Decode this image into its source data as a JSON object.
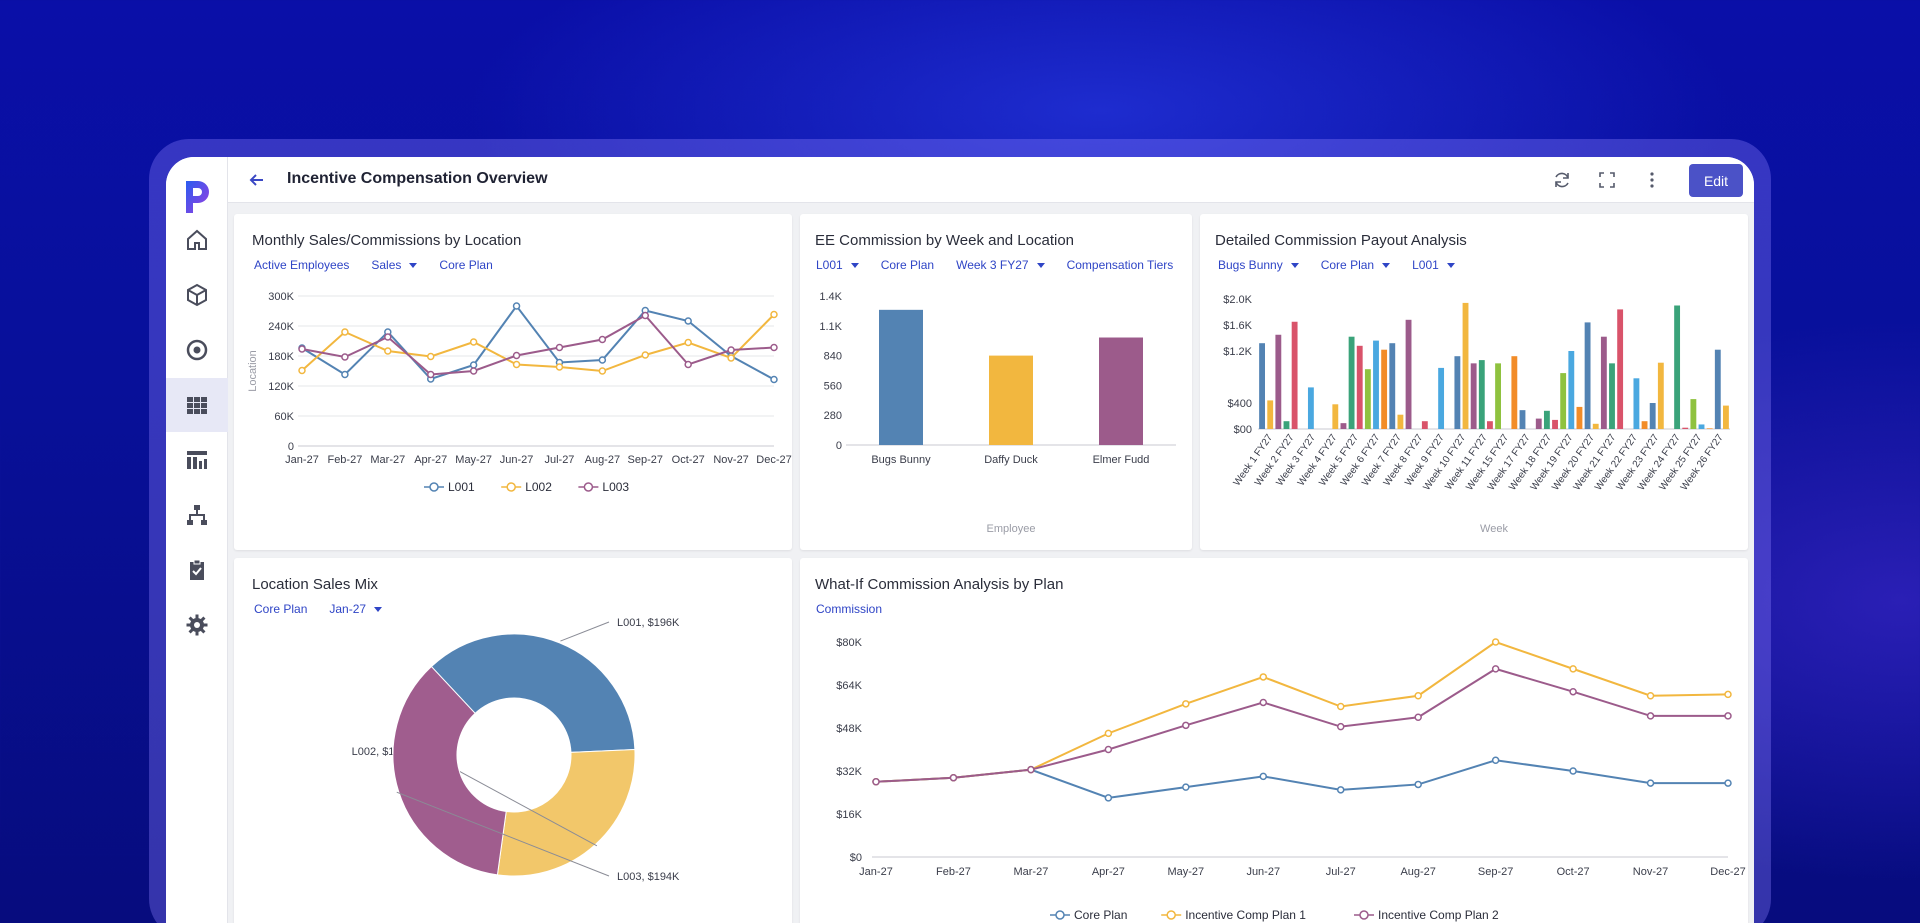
{
  "page_title": "Incentive Compensation Overview",
  "toolbar": {
    "edit_label": "Edit"
  },
  "icons": {
    "back": "arrow-left-icon",
    "refresh": "refresh-icon",
    "fullscreen": "fullscreen-icon",
    "more": "more-vertical-icon",
    "nav": [
      "home-icon",
      "cube-icon",
      "target-icon",
      "grid-icon",
      "dashboard-icon",
      "hierarchy-icon",
      "clipboard-icon",
      "settings-icon"
    ]
  },
  "colors": {
    "accent": "#4b52c7",
    "filter": "#2f45c6",
    "blue": "#5383b3",
    "yellow": "#f2b73f",
    "purple": "#9c5b8b"
  },
  "cards": {
    "monthly": {
      "title": "Monthly Sales/Commissions by Location",
      "filters": [
        {
          "label": "Active Employees",
          "dropdown": false
        },
        {
          "label": "Sales",
          "dropdown": true
        },
        {
          "label": "Core Plan",
          "dropdown": false
        }
      ]
    },
    "ee": {
      "title": "EE Commission by Week and Location",
      "filters": [
        {
          "label": "L001",
          "dropdown": true
        },
        {
          "label": "Core Plan",
          "dropdown": false
        },
        {
          "label": "Week 3 FY27",
          "dropdown": true
        },
        {
          "label": "Compensation Tiers",
          "dropdown": false
        }
      ]
    },
    "detailed": {
      "title": "Detailed Commission Payout Analysis",
      "filters": [
        {
          "label": "Bugs Bunny",
          "dropdown": true
        },
        {
          "label": "Core Plan",
          "dropdown": true
        },
        {
          "label": "L001",
          "dropdown": true
        }
      ]
    },
    "mix": {
      "title": "Location Sales Mix",
      "filters": [
        {
          "label": "Core Plan",
          "dropdown": false
        },
        {
          "label": "Jan-27",
          "dropdown": true
        }
      ]
    },
    "whatif": {
      "title": "What-If Commission Analysis by Plan",
      "filters": [
        {
          "label": "Commission",
          "dropdown": false
        }
      ]
    }
  },
  "chart_data": [
    {
      "id": "monthly",
      "type": "line",
      "ylabel": "Location",
      "xlabel": "",
      "ylim": [
        0,
        300000
      ],
      "yticks": [
        "0",
        "60K",
        "120K",
        "180K",
        "240K",
        "300K"
      ],
      "yticks_values": [
        0,
        60000,
        120000,
        180000,
        240000,
        300000
      ],
      "categories": [
        "Jan-27",
        "Feb-27",
        "Mar-27",
        "Apr-27",
        "May-27",
        "Jun-27",
        "Jul-27",
        "Aug-27",
        "Sep-27",
        "Oct-27",
        "Nov-27",
        "Dec-27"
      ],
      "legend_position": "bottom",
      "grid": true,
      "series": [
        {
          "name": "L001",
          "color": "#5383b3",
          "values": [
            196000,
            143000,
            228000,
            134000,
            162000,
            280000,
            167000,
            172000,
            271000,
            250000,
            180000,
            133000
          ]
        },
        {
          "name": "L002",
          "color": "#f2b73f",
          "values": [
            151000,
            228000,
            190000,
            179000,
            208000,
            163000,
            158000,
            150000,
            182000,
            207000,
            176000,
            263000
          ]
        },
        {
          "name": "L003",
          "color": "#9c5b8b",
          "values": [
            194000,
            178000,
            218000,
            143000,
            150000,
            181000,
            197000,
            213000,
            261000,
            163000,
            192000,
            197000
          ]
        }
      ]
    },
    {
      "id": "ee",
      "type": "bar",
      "xlabel": "Employee",
      "ylabel": "",
      "ylim": [
        0,
        1400
      ],
      "yticks": [
        "0",
        "280",
        "560",
        "840",
        "1.1K",
        "1.4K"
      ],
      "yticks_values": [
        0,
        280,
        560,
        840,
        1120,
        1400
      ],
      "categories": [
        "Bugs Bunny",
        "Daffy Duck",
        "Elmer Fudd"
      ],
      "values": [
        1270,
        840,
        1010
      ],
      "colors": [
        "#5383b3",
        "#f2b73f",
        "#9c5b8b"
      ],
      "grid": false
    },
    {
      "id": "detailed",
      "type": "bar",
      "xlabel": "Week",
      "ylabel": "",
      "ylim": [
        0,
        2000
      ],
      "yticks": [
        "$00",
        "$400",
        "$1.2K",
        "$1.6K",
        "$2.0K"
      ],
      "yticks_values": [
        0,
        400,
        1200,
        1600,
        2000
      ],
      "categories": [
        "Week 1 FY27",
        "Week 2 FY27",
        "Week 3 FY27",
        "Week 4 FY27",
        "Week 5 FY27",
        "Week 6 FY27",
        "Week 7 FY27",
        "Week 8 FY27",
        "Week 9 FY27",
        "Week 10 FY27",
        "Week 11 FY27",
        "Week 15 FY27",
        "Week 17 FY27",
        "Week 18 FY27",
        "Week 19 FY27",
        "Week 20 FY27",
        "Week 21 FY27",
        "Week 22 FY27",
        "Week 23 FY27",
        "Week 24 FY27",
        "Week 25 FY27",
        "Week 26 FY27"
      ],
      "bar_colors": [
        "#5383b3",
        "#f2b73f",
        "#9c5b8b",
        "#3aa37a",
        "#d9536a",
        "#8fc23f",
        "#4aa8e0",
        "#f28c28"
      ],
      "bars": [
        1320,
        440,
        1450,
        120,
        1650,
        0,
        640,
        0,
        0,
        380,
        90,
        1420,
        1280,
        920,
        1360,
        1220,
        1320,
        220,
        1680,
        0,
        120,
        0,
        940,
        0,
        1120,
        1940,
        1010,
        1060,
        120,
        1010,
        0,
        1120,
        290,
        0,
        160,
        280,
        140,
        860,
        1200,
        340,
        1640,
        80,
        1420,
        1010,
        1840,
        0,
        780,
        120,
        400,
        1020,
        0,
        1900,
        20,
        460,
        70,
        10,
        1220,
        360
      ],
      "grid": false
    },
    {
      "id": "mix",
      "type": "pie",
      "donut": true,
      "slices": [
        {
          "label": "L001, $196K",
          "name": "L001",
          "value": 196,
          "color": "#5383b3"
        },
        {
          "label": "L002, $151K",
          "name": "L002",
          "value": 151,
          "color": "#f2c76a"
        },
        {
          "label": "L003, $194K",
          "name": "L003",
          "value": 194,
          "color": "#a05d8e"
        }
      ]
    },
    {
      "id": "whatif",
      "type": "line",
      "xlabel": "",
      "ylabel": "",
      "ylim": [
        0,
        80000
      ],
      "yticks": [
        "$0",
        "$16K",
        "$32K",
        "$48K",
        "$64K",
        "$80K"
      ],
      "yticks_values": [
        0,
        16000,
        32000,
        48000,
        64000,
        80000
      ],
      "categories": [
        "Jan-27",
        "Feb-27",
        "Mar-27",
        "Apr-27",
        "May-27",
        "Jun-27",
        "Jul-27",
        "Aug-27",
        "Sep-27",
        "Oct-27",
        "Nov-27",
        "Dec-27"
      ],
      "legend_position": "bottom",
      "grid": false,
      "series": [
        {
          "name": "Core Plan",
          "color": "#5383b3",
          "values": [
            28000,
            29500,
            32500,
            22000,
            26000,
            30000,
            25000,
            27000,
            36000,
            32000,
            27500,
            27500
          ]
        },
        {
          "name": "Incentive Comp Plan 1",
          "color": "#f2b73f",
          "values": [
            28000,
            29500,
            32500,
            46000,
            57000,
            67000,
            56000,
            60000,
            80000,
            70000,
            60000,
            60500
          ]
        },
        {
          "name": "Incentive Comp Plan 2",
          "color": "#9c5b8b",
          "values": [
            28000,
            29500,
            32500,
            40000,
            49000,
            57500,
            48500,
            52000,
            70000,
            61500,
            52500,
            52500
          ]
        }
      ]
    }
  ]
}
